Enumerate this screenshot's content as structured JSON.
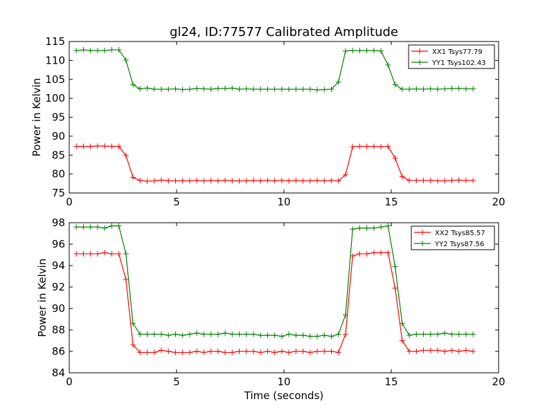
{
  "chart_data": [
    {
      "type": "line",
      "title": "gl24, ID:77577 Calibrated Amplitude",
      "xlabel": "",
      "ylabel": "Power in Kelvin",
      "xlim": [
        0,
        20
      ],
      "ylim": [
        75,
        115
      ],
      "xticks": [
        0,
        5,
        10,
        15,
        20
      ],
      "yticks": [
        75,
        80,
        85,
        90,
        95,
        100,
        105,
        110,
        115
      ],
      "grid": false,
      "legend_position": "top-right",
      "marker": "+",
      "x": [
        0.33,
        0.66,
        0.99,
        1.32,
        1.65,
        1.98,
        2.31,
        2.64,
        2.97,
        3.3,
        3.63,
        3.96,
        4.29,
        4.62,
        4.95,
        5.28,
        5.61,
        5.94,
        6.27,
        6.6,
        6.93,
        7.26,
        7.59,
        7.92,
        8.25,
        8.58,
        8.91,
        9.24,
        9.57,
        9.9,
        10.23,
        10.56,
        10.89,
        11.22,
        11.55,
        11.88,
        12.21,
        12.54,
        12.87,
        13.2,
        13.53,
        13.86,
        14.19,
        14.52,
        14.85,
        15.18,
        15.51,
        15.84,
        16.17,
        16.5,
        16.83,
        17.16,
        17.49,
        17.82,
        18.15,
        18.48,
        18.81
      ],
      "series": [
        {
          "name": "XX1 Tsys77.79",
          "color": "#ff0000",
          "values": [
            87.3,
            87.3,
            87.3,
            87.4,
            87.4,
            87.3,
            87.3,
            84.9,
            79.1,
            78.3,
            78.1,
            78.2,
            78.4,
            78.2,
            78.2,
            78.2,
            78.2,
            78.3,
            78.2,
            78.3,
            78.2,
            78.3,
            78.2,
            78.2,
            78.2,
            78.3,
            78.2,
            78.3,
            78.2,
            78.3,
            78.2,
            78.3,
            78.2,
            78.2,
            78.3,
            78.2,
            78.3,
            78.2,
            79.8,
            87.2,
            87.3,
            87.3,
            87.3,
            87.2,
            87.3,
            84.2,
            79.3,
            78.3,
            78.3,
            78.3,
            78.3,
            78.2,
            78.2,
            78.3,
            78.4,
            78.3,
            78.3
          ]
        },
        {
          "name": "YY1 Tsys102.43",
          "color": "#008000",
          "values": [
            112.6,
            112.8,
            112.6,
            112.6,
            112.6,
            112.8,
            112.8,
            110.1,
            103.6,
            102.5,
            102.7,
            102.4,
            102.4,
            102.4,
            102.5,
            102.3,
            102.4,
            102.6,
            102.5,
            102.4,
            102.6,
            102.6,
            102.7,
            102.4,
            102.5,
            102.4,
            102.4,
            102.4,
            102.4,
            102.4,
            102.4,
            102.4,
            102.4,
            102.4,
            102.2,
            102.3,
            102.4,
            104.3,
            112.5,
            112.6,
            112.6,
            112.6,
            112.6,
            112.5,
            108.8,
            103.6,
            102.4,
            102.4,
            102.5,
            102.4,
            102.5,
            102.4,
            102.5,
            102.6,
            102.6,
            102.5,
            102.5
          ]
        }
      ]
    },
    {
      "type": "line",
      "title": "",
      "xlabel": "Time (seconds)",
      "ylabel": "Power in Kelvin",
      "xlim": [
        0,
        20
      ],
      "ylim": [
        84,
        98
      ],
      "xticks": [
        0,
        5,
        10,
        15,
        20
      ],
      "yticks": [
        84,
        86,
        88,
        90,
        92,
        94,
        96,
        98
      ],
      "grid": false,
      "legend_position": "top-right",
      "marker": "+",
      "x": [
        0.33,
        0.66,
        0.99,
        1.32,
        1.65,
        1.98,
        2.31,
        2.64,
        2.97,
        3.3,
        3.63,
        3.96,
        4.29,
        4.62,
        4.95,
        5.28,
        5.61,
        5.94,
        6.27,
        6.6,
        6.93,
        7.26,
        7.59,
        7.92,
        8.25,
        8.58,
        8.91,
        9.24,
        9.57,
        9.9,
        10.23,
        10.56,
        10.89,
        11.22,
        11.55,
        11.88,
        12.21,
        12.54,
        12.87,
        13.2,
        13.53,
        13.86,
        14.19,
        14.52,
        14.85,
        15.18,
        15.51,
        15.84,
        16.17,
        16.5,
        16.83,
        17.16,
        17.49,
        17.82,
        18.15,
        18.48,
        18.81
      ],
      "series": [
        {
          "name": "XX2 Tsys85.57",
          "color": "#ff0000",
          "values": [
            95.1,
            95.1,
            95.1,
            95.1,
            95.2,
            95.1,
            95.1,
            92.7,
            86.6,
            85.9,
            85.9,
            85.9,
            86.1,
            86.0,
            85.9,
            85.9,
            85.9,
            86.0,
            85.9,
            86.0,
            86.0,
            85.9,
            85.9,
            86.0,
            86.0,
            86.0,
            85.9,
            86.0,
            85.9,
            86.0,
            85.9,
            86.0,
            86.0,
            85.9,
            86.0,
            86.0,
            86.0,
            85.9,
            87.6,
            94.9,
            95.1,
            95.1,
            95.2,
            95.2,
            95.2,
            91.9,
            87.0,
            86.0,
            86.0,
            86.1,
            86.1,
            86.1,
            86.0,
            86.1,
            86.0,
            86.1,
            86.0
          ]
        },
        {
          "name": "YY2 Tsys87.56",
          "color": "#008000",
          "values": [
            97.6,
            97.6,
            97.6,
            97.6,
            97.5,
            97.7,
            97.7,
            95.1,
            88.6,
            87.6,
            87.6,
            87.6,
            87.6,
            87.5,
            87.6,
            87.5,
            87.6,
            87.7,
            87.6,
            87.6,
            87.6,
            87.7,
            87.6,
            87.6,
            87.6,
            87.6,
            87.5,
            87.5,
            87.5,
            87.4,
            87.6,
            87.5,
            87.5,
            87.4,
            87.4,
            87.5,
            87.4,
            87.6,
            89.4,
            97.4,
            97.5,
            97.5,
            97.5,
            97.6,
            97.7,
            93.9,
            88.6,
            87.5,
            87.6,
            87.6,
            87.6,
            87.6,
            87.7,
            87.6,
            87.6,
            87.6,
            87.6
          ]
        }
      ]
    }
  ]
}
